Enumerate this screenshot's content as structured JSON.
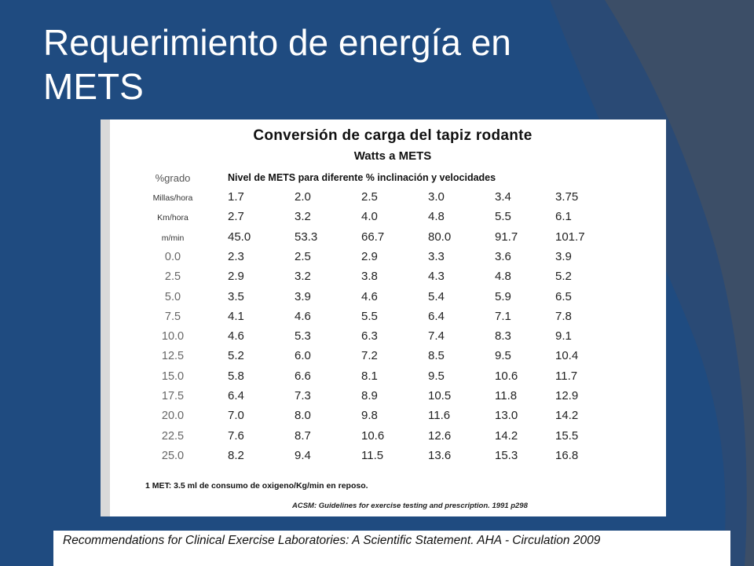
{
  "slide": {
    "title_line1": "Requerimiento de energía en",
    "title_line2": "METS",
    "citation": "Recommendations for Clinical Exercise Laboratories: A Scientific Statement. AHA - Circulation 2009",
    "colors": {
      "background": "#1f4b80",
      "accent_arc": "#3e4f66",
      "text": "#ffffff"
    }
  },
  "table": {
    "title": "Conversión de carga del tapiz rodante",
    "subtitle": "Watts a METS",
    "row_header_label": "%grado",
    "column_header": "Nivel de METS para diferente % inclinación y velocidades",
    "speed_rows": [
      {
        "label": "Millas/hora",
        "values": [
          "1.7",
          "2.0",
          "2.5",
          "3.0",
          "3.4",
          "3.75"
        ]
      },
      {
        "label": "Km/hora",
        "values": [
          "2.7",
          "3.2",
          "4.0",
          "4.8",
          "5.5",
          "6.1"
        ]
      },
      {
        "label": "m/min",
        "values": [
          "45.0",
          "53.3",
          "66.7",
          "80.0",
          "91.7",
          "101.7"
        ]
      }
    ],
    "grade_rows": [
      {
        "label": "0.0",
        "values": [
          "2.3",
          "2.5",
          "2.9",
          "3.3",
          "3.6",
          "3.9"
        ]
      },
      {
        "label": "2.5",
        "values": [
          "2.9",
          "3.2",
          "3.8",
          "4.3",
          "4.8",
          "5.2"
        ]
      },
      {
        "label": "5.0",
        "values": [
          "3.5",
          "3.9",
          "4.6",
          "5.4",
          "5.9",
          "6.5"
        ]
      },
      {
        "label": "7.5",
        "values": [
          "4.1",
          "4.6",
          "5.5",
          "6.4",
          "7.1",
          "7.8"
        ]
      },
      {
        "label": "10.0",
        "values": [
          "4.6",
          "5.3",
          "6.3",
          "7.4",
          "8.3",
          "9.1"
        ]
      },
      {
        "label": "12.5",
        "values": [
          "5.2",
          "6.0",
          "7.2",
          "8.5",
          "9.5",
          "10.4"
        ]
      },
      {
        "label": "15.0",
        "values": [
          "5.8",
          "6.6",
          "8.1",
          "9.5",
          "10.6",
          "11.7"
        ]
      },
      {
        "label": "17.5",
        "values": [
          "6.4",
          "7.3",
          "8.9",
          "10.5",
          "11.8",
          "12.9"
        ]
      },
      {
        "label": "20.0",
        "values": [
          "7.0",
          "8.0",
          "9.8",
          "11.6",
          "13.0",
          "14.2"
        ]
      },
      {
        "label": "22.5",
        "values": [
          "7.6",
          "8.7",
          "10.6",
          "12.6",
          "14.2",
          "15.5"
        ]
      },
      {
        "label": "25.0",
        "values": [
          "8.2",
          "9.4",
          "11.5",
          "13.6",
          "15.3",
          "16.8"
        ]
      }
    ],
    "footnote": "1 MET: 3.5 ml de consumo de oxigeno/Kg/min en reposo.",
    "source": "ACSM: Guidelines for exercise testing and prescription. 1991 p298"
  }
}
